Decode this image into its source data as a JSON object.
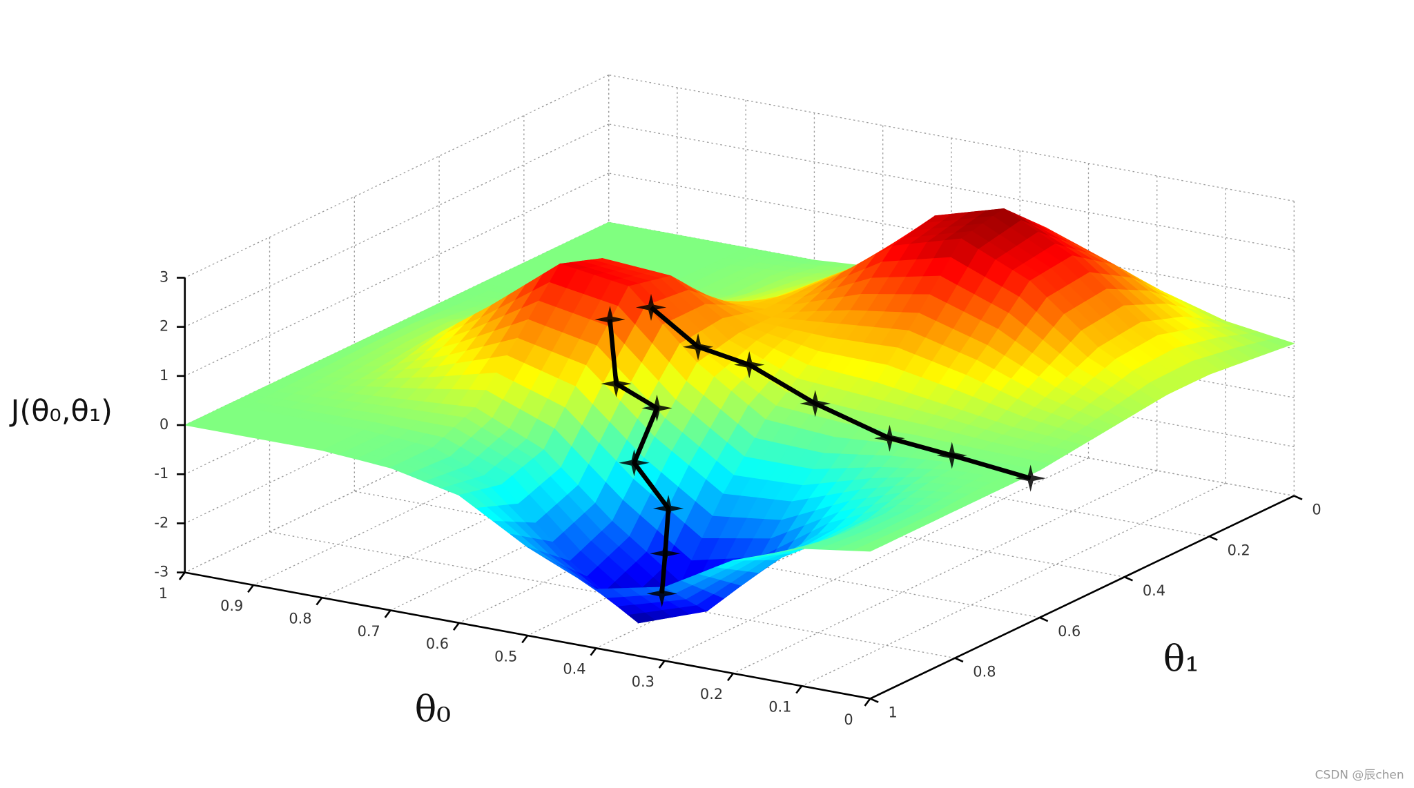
{
  "chart_data": {
    "type": "surface3d",
    "x_label": "θ₀",
    "y_label": "θ₁",
    "z_label": "J(θ₀,θ₁)",
    "colormap": "jet",
    "grid": true,
    "xlim": [
      0,
      1
    ],
    "ylim": [
      0,
      1
    ],
    "zlim": [
      -3,
      3
    ],
    "xticks": [
      0,
      0.1,
      0.2,
      0.3,
      0.4,
      0.5,
      0.6,
      0.7,
      0.8,
      0.9,
      1
    ],
    "yticks": [
      0,
      0.2,
      0.4,
      0.6,
      0.8,
      1
    ],
    "zticks": [
      -3,
      -2,
      -1,
      0,
      1,
      2,
      3
    ],
    "x": [
      0,
      0.1,
      0.2,
      0.3,
      0.4,
      0.5,
      0.6,
      0.7,
      0.8,
      0.9,
      1
    ],
    "y": [
      0,
      0.1,
      0.2,
      0.3,
      0.4,
      0.5,
      0.6,
      0.7,
      0.8,
      0.9,
      1
    ],
    "z": [
      [
        0.1,
        0.2,
        0.3,
        0.3,
        0.2,
        0.1,
        0,
        0,
        0,
        0,
        0
      ],
      [
        0.3,
        0.8,
        1.1,
        1.0,
        0.6,
        0.2,
        0,
        -0.1,
        -0.3,
        -0.3,
        -0.2
      ],
      [
        0.7,
        1.6,
        2.2,
        2.1,
        1.2,
        0.4,
        0,
        -0.5,
        -1.0,
        -1.1,
        -0.7
      ],
      [
        0.9,
        2.1,
        2.9,
        2.7,
        1.6,
        0.6,
        -0.1,
        -1.0,
        -2.1,
        -2.4,
        -1.5
      ],
      [
        0.8,
        1.7,
        2.5,
        2.3,
        1.4,
        0.7,
        0,
        -1.1,
        -2.5,
        -2.9,
        -1.8
      ],
      [
        0.4,
        0.9,
        1.3,
        1.3,
        1.1,
        1.1,
        0.9,
        -0.2,
        -1.5,
        -1.9,
        -1.2
      ],
      [
        0.1,
        0.3,
        0.5,
        0.6,
        1.1,
        2.0,
        2.2,
        1.0,
        -0.3,
        -0.6,
        -0.4
      ],
      [
        0,
        0.1,
        0.1,
        0.3,
        1.0,
        2.1,
        2.4,
        1.3,
        0.3,
        -0.1,
        -0.1
      ],
      [
        0,
        0,
        0,
        0.1,
        0.5,
        1.1,
        1.3,
        0.7,
        0.2,
        0,
        0
      ],
      [
        0,
        0,
        0,
        0,
        0.1,
        0.3,
        0.3,
        0.2,
        0.1,
        0,
        0
      ],
      [
        0,
        0,
        0,
        0,
        0,
        0,
        0,
        0,
        0,
        0,
        0
      ]
    ],
    "paths": [
      {
        "color": "#000000",
        "x": [
          0.59,
          0.55,
          0.54,
          0.53,
          0.48,
          0.46,
          0.44
        ],
        "y": [
          0.66,
          0.71,
          0.63,
          0.7,
          0.7,
          0.74,
          0.78
        ],
        "z": [
          1.8,
          0.8,
          0.0,
          -0.8,
          -1.6,
          -2.3,
          -2.9
        ]
      },
      {
        "color": "#000000",
        "x": [
          0.53,
          0.48,
          0.43,
          0.34,
          0.25,
          0.19,
          0.1
        ],
        "y": [
          0.66,
          0.63,
          0.59,
          0.58,
          0.55,
          0.5,
          0.46
        ],
        "z": [
          2.2,
          1.4,
          1.0,
          0.4,
          -0.2,
          -0.6,
          -1.0
        ]
      }
    ]
  },
  "watermark": "CSDN @辰chen"
}
